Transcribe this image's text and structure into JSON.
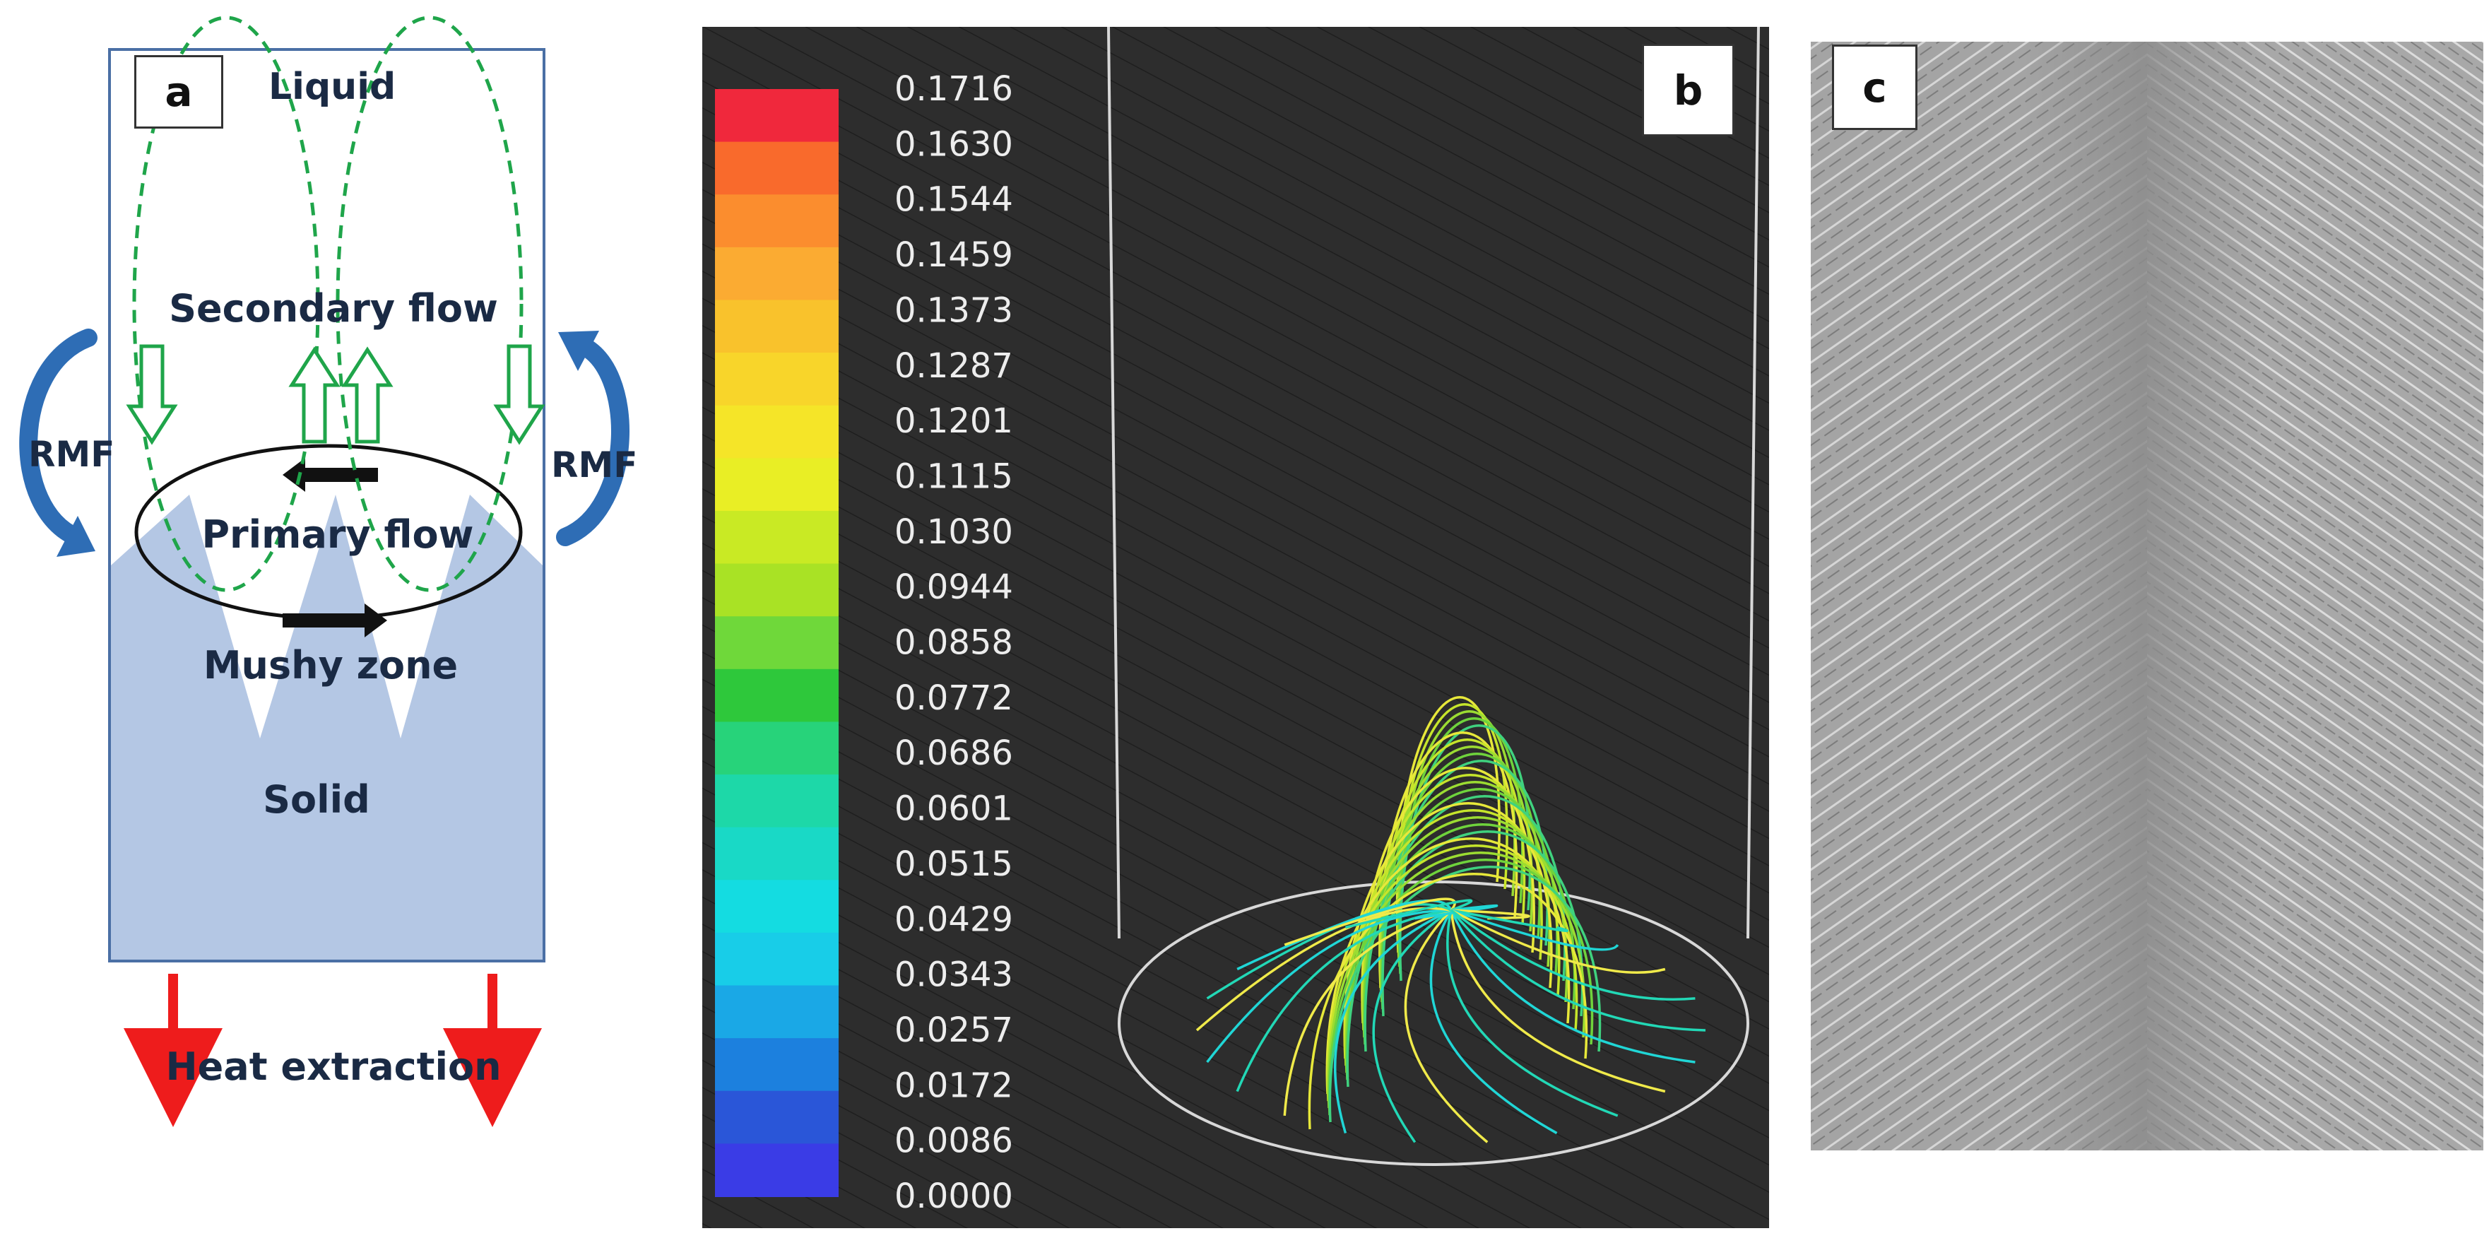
{
  "panel_a": {
    "letter": "a",
    "liquid": "Liquid",
    "secondary_flow": "Secondary flow",
    "primary_flow": "Primary flow",
    "mushy_zone": "Mushy zone",
    "solid": "Solid",
    "rmf_left": "RMF",
    "rmf_right": "RMF",
    "heat_extraction": "Heat extraction"
  },
  "panel_b": {
    "letter": "b",
    "legend": [
      "0.1716",
      "0.1630",
      "0.1544",
      "0.1459",
      "0.1373",
      "0.1287",
      "0.1201",
      "0.1115",
      "0.1030",
      "0.0944",
      "0.0858",
      "0.0772",
      "0.0686",
      "0.0601",
      "0.0515",
      "0.0429",
      "0.0343",
      "0.0257",
      "0.0172",
      "0.0086",
      "0.0000"
    ],
    "colors": [
      "#f0283c",
      "#f96a2c",
      "#fb8d2e",
      "#fbab32",
      "#f9c22c",
      "#f8d52a",
      "#f5e528",
      "#e9ee25",
      "#c9ea24",
      "#a9e225",
      "#6fd83a",
      "#2ec83b",
      "#27d37a",
      "#1dd8a8",
      "#19d9c6",
      "#14dce1",
      "#18cde8",
      "#1aa8e6",
      "#1c80de",
      "#2a56d8",
      "#3a3ce6"
    ]
  },
  "panel_c": {
    "letter": "c"
  }
}
